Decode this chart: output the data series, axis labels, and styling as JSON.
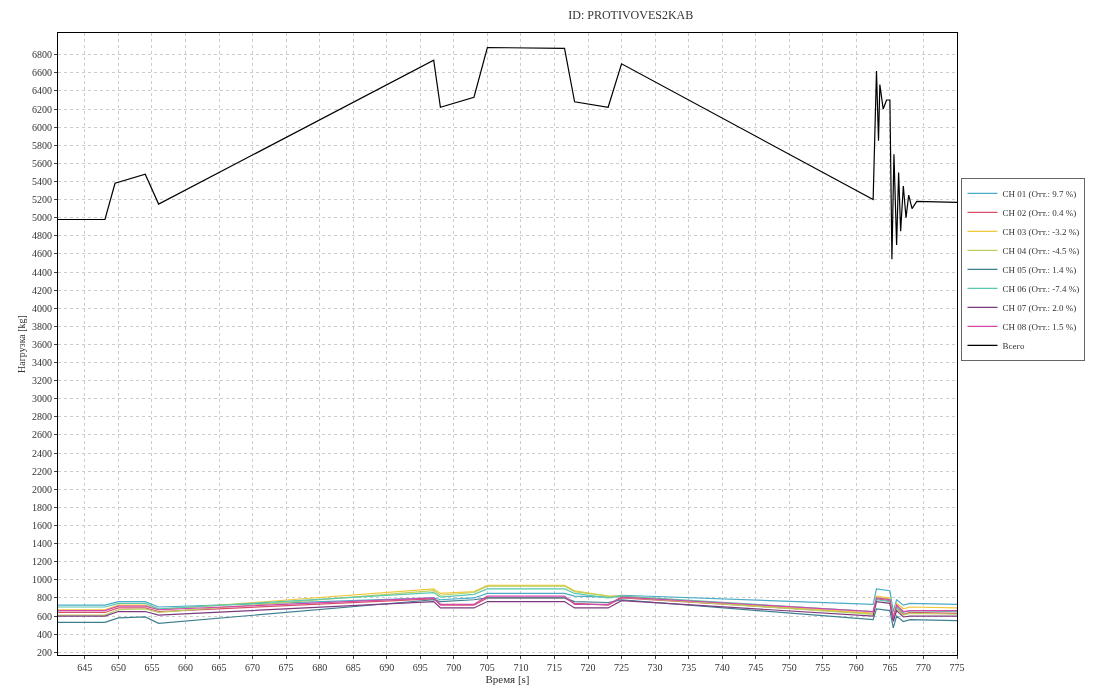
{
  "chart_data": {
    "type": "line",
    "title": "ID: PROTIVOVES2KAB",
    "xlabel": "Время [s]",
    "ylabel": "Нагрузка [kg]",
    "x": [
      641,
      648,
      650,
      654,
      656,
      697,
      698,
      703,
      705,
      716.5,
      718,
      723,
      725,
      762.5,
      763,
      765,
      765.5,
      766,
      767,
      768,
      775
    ],
    "xlim": [
      641,
      775
    ],
    "xticks": [
      645,
      650,
      655,
      660,
      665,
      670,
      675,
      680,
      685,
      690,
      695,
      700,
      705,
      710,
      715,
      720,
      725,
      730,
      735,
      740,
      745,
      750,
      755,
      760,
      765,
      770,
      775
    ],
    "ylim": [
      170,
      7040
    ],
    "yticks": [
      200,
      400,
      600,
      800,
      1000,
      1200,
      1400,
      1600,
      1800,
      2000,
      2200,
      2400,
      2600,
      2800,
      3000,
      3200,
      3400,
      3600,
      3800,
      4000,
      4200,
      4400,
      4600,
      4800,
      5000,
      5200,
      5400,
      5600,
      5800,
      6000,
      6200,
      6400,
      6600,
      6800
    ],
    "grid": true,
    "legend": "right",
    "line_style": "solid",
    "marker": "none",
    "series": [
      {
        "name": "CH 01 (Отт.: 9.7 %)",
        "color": "#4bacc6",
        "values": [
          720,
          720,
          760,
          760,
          700,
          800,
          780,
          800,
          850,
          850,
          820,
          810,
          830,
          730,
          900,
          880,
          650,
          780,
          720,
          740,
          730
        ]
      },
      {
        "name": "CH 02 (Отт.: 0.4 %)",
        "color": "#d9506a",
        "values": [
          640,
          640,
          690,
          690,
          650,
          790,
          720,
          720,
          800,
          800,
          740,
          720,
          800,
          630,
          790,
          770,
          560,
          700,
          620,
          640,
          630
        ]
      },
      {
        "name": "CH 03 (Отт.: -3.2 %)",
        "color": "#f0c83c",
        "values": [
          670,
          670,
          720,
          720,
          670,
          900,
          850,
          870,
          940,
          940,
          880,
          820,
          820,
          630,
          820,
          800,
          600,
          740,
          680,
          700,
          690
        ]
      },
      {
        "name": "CH 04 (Отт.: -4.5 %)",
        "color": "#bcd060",
        "values": [
          610,
          610,
          670,
          680,
          640,
          880,
          830,
          860,
          930,
          930,
          870,
          820,
          810,
          620,
          800,
          790,
          570,
          680,
          610,
          630,
          620
        ]
      },
      {
        "name": "CH 05 (Отт.: 1.4 %)",
        "color": "#3f8090",
        "values": [
          530,
          530,
          580,
          590,
          520,
          780,
          760,
          780,
          800,
          800,
          760,
          750,
          780,
          560,
          680,
          660,
          470,
          600,
          540,
          560,
          550
        ]
      },
      {
        "name": "CH 06 (Отт.: -7.4 %)",
        "color": "#5cc8b0",
        "values": [
          700,
          700,
          740,
          740,
          680,
          860,
          810,
          840,
          900,
          900,
          850,
          800,
          820,
          650,
          780,
          760,
          560,
          700,
          640,
          660,
          650
        ]
      },
      {
        "name": "CH 07 (Отт.: 2.0 %)",
        "color": "#7a3a80",
        "values": [
          600,
          600,
          650,
          650,
          610,
          760,
          690,
          690,
          760,
          760,
          690,
          690,
          770,
          600,
          760,
          740,
          540,
          660,
          590,
          600,
          600
        ]
      },
      {
        "name": "CH 08 (Отт.: 1.5 %)",
        "color": "#d048a8",
        "values": [
          660,
          660,
          710,
          710,
          670,
          800,
          730,
          730,
          820,
          820,
          730,
          730,
          810,
          650,
          800,
          780,
          580,
          720,
          650,
          660,
          660
        ]
      },
      {
        "name": "Всего",
        "color": "#000000",
        "x": [
          641,
          648,
          649.5,
          654,
          656,
          697,
          698,
          703,
          705,
          716.5,
          718,
          723,
          725,
          762.5,
          763,
          763.3,
          763.5,
          764,
          764.5,
          765,
          765.3,
          765.6,
          766,
          766.3,
          766.6,
          767,
          767.4,
          767.8,
          768.3,
          769,
          775
        ],
        "values": [
          4980,
          4980,
          5380,
          5480,
          5150,
          6740,
          6220,
          6330,
          6880,
          6870,
          6280,
          6220,
          6700,
          5200,
          6620,
          5850,
          6470,
          6200,
          6300,
          6300,
          4540,
          5700,
          4700,
          5500,
          4850,
          5350,
          5000,
          5250,
          5100,
          5180,
          5170
        ]
      }
    ]
  }
}
